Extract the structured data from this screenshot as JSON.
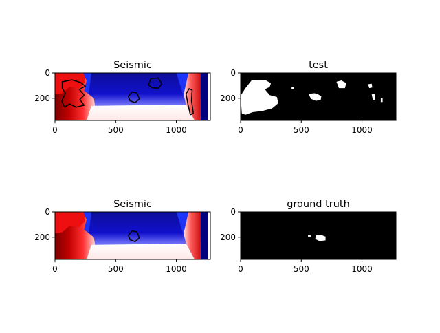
{
  "chart_data": [
    {
      "type": "heatmap",
      "title": "Seismic",
      "colormap": "seismic",
      "image_extent": {
        "x": [
          0,
          1260
        ],
        "y": [
          375,
          0
        ]
      },
      "xlim": [
        0,
        1280
      ],
      "ylim": [
        375,
        0
      ],
      "xticks": [
        0,
        500,
        1000
      ],
      "yticks": [
        0,
        200
      ],
      "overlay": "black contour lines of predicted salt body",
      "contours": [
        [
          [
            60,
            70
          ],
          [
            140,
            55
          ],
          [
            210,
            75
          ],
          [
            250,
            105
          ],
          [
            200,
            130
          ],
          [
            240,
            175
          ],
          [
            205,
            210
          ],
          [
            240,
            255
          ],
          [
            175,
            270
          ],
          [
            120,
            245
          ],
          [
            80,
            270
          ],
          [
            55,
            225
          ],
          [
            85,
            160
          ],
          [
            60,
            120
          ]
        ],
        [
          [
            770,
            95
          ],
          [
            790,
            45
          ],
          [
            850,
            40
          ],
          [
            880,
            85
          ],
          [
            855,
            120
          ],
          [
            800,
            118
          ]
        ],
        [
          [
            605,
            185
          ],
          [
            635,
            150
          ],
          [
            675,
            158
          ],
          [
            695,
            205
          ],
          [
            660,
            235
          ],
          [
            618,
            220
          ]
        ],
        [
          [
            1080,
            165
          ],
          [
            1105,
            125
          ],
          [
            1130,
            135
          ],
          [
            1125,
            220
          ],
          [
            1140,
            320
          ],
          [
            1115,
            330
          ],
          [
            1095,
            245
          ]
        ]
      ]
    },
    {
      "type": "heatmap",
      "title": "test",
      "colormap": "binary (black/white)",
      "image_extent": {
        "x": [
          0,
          1280
        ],
        "y": [
          375,
          0
        ]
      },
      "xlim": [
        0,
        1280
      ],
      "ylim": [
        375,
        0
      ],
      "xticks": [
        0,
        500,
        1000
      ],
      "yticks": [
        0,
        200
      ],
      "mask_regions": [
        [
          [
            0,
            180
          ],
          [
            40,
            120
          ],
          [
            90,
            60
          ],
          [
            200,
            55
          ],
          [
            250,
            80
          ],
          [
            240,
            110
          ],
          [
            200,
            130
          ],
          [
            240,
            175
          ],
          [
            300,
            190
          ],
          [
            310,
            240
          ],
          [
            260,
            280
          ],
          [
            180,
            300
          ],
          [
            100,
            310
          ],
          [
            40,
            330
          ],
          [
            10,
            320
          ]
        ],
        [
          [
            420,
            110
          ],
          [
            440,
            112
          ],
          [
            440,
            130
          ],
          [
            420,
            130
          ]
        ],
        [
          [
            560,
            165
          ],
          [
            610,
            160
          ],
          [
            640,
            170
          ],
          [
            665,
            185
          ],
          [
            660,
            215
          ],
          [
            620,
            220
          ],
          [
            580,
            205
          ]
        ],
        [
          [
            790,
            70
          ],
          [
            830,
            60
          ],
          [
            870,
            80
          ],
          [
            860,
            120
          ],
          [
            810,
            120
          ]
        ],
        [
          [
            1050,
            90
          ],
          [
            1080,
            85
          ],
          [
            1085,
            115
          ],
          [
            1060,
            120
          ]
        ],
        [
          [
            1080,
            170
          ],
          [
            1105,
            165
          ],
          [
            1110,
            210
          ],
          [
            1090,
            215
          ]
        ],
        [
          [
            1155,
            200
          ],
          [
            1170,
            200
          ],
          [
            1170,
            230
          ],
          [
            1155,
            230
          ]
        ]
      ]
    },
    {
      "type": "heatmap",
      "title": "Seismic",
      "colormap": "seismic",
      "image_extent": {
        "x": [
          0,
          1260
        ],
        "y": [
          375,
          0
        ]
      },
      "xlim": [
        0,
        1280
      ],
      "ylim": [
        375,
        0
      ],
      "xticks": [
        0,
        500,
        1000
      ],
      "yticks": [
        0,
        200
      ],
      "overlay": "black contour line of ground-truth salt body",
      "contours": [
        [
          [
            605,
            185
          ],
          [
            635,
            150
          ],
          [
            675,
            158
          ],
          [
            695,
            205
          ],
          [
            660,
            235
          ],
          [
            618,
            220
          ]
        ]
      ]
    },
    {
      "type": "heatmap",
      "title": "ground truth",
      "colormap": "binary (black/white)",
      "image_extent": {
        "x": [
          0,
          1280
        ],
        "y": [
          375,
          0
        ]
      },
      "xlim": [
        0,
        1280
      ],
      "ylim": [
        375,
        0
      ],
      "xticks": [
        0,
        500,
        1000
      ],
      "yticks": [
        0,
        200
      ],
      "mask_regions": [
        [
          [
            555,
            185
          ],
          [
            580,
            185
          ],
          [
            580,
            195
          ],
          [
            555,
            195
          ]
        ],
        [
          [
            620,
            185
          ],
          [
            660,
            180
          ],
          [
            700,
            195
          ],
          [
            700,
            225
          ],
          [
            650,
            230
          ],
          [
            615,
            215
          ]
        ]
      ]
    }
  ],
  "colors": {
    "seismic_red": "#d7191c",
    "seismic_dark_red": "#7f0000",
    "seismic_blue": "#1a1aff",
    "seismic_dark_blue": "#00007f",
    "mask_on": "#ffffff",
    "mask_off": "#000000",
    "contour": "#000000"
  }
}
